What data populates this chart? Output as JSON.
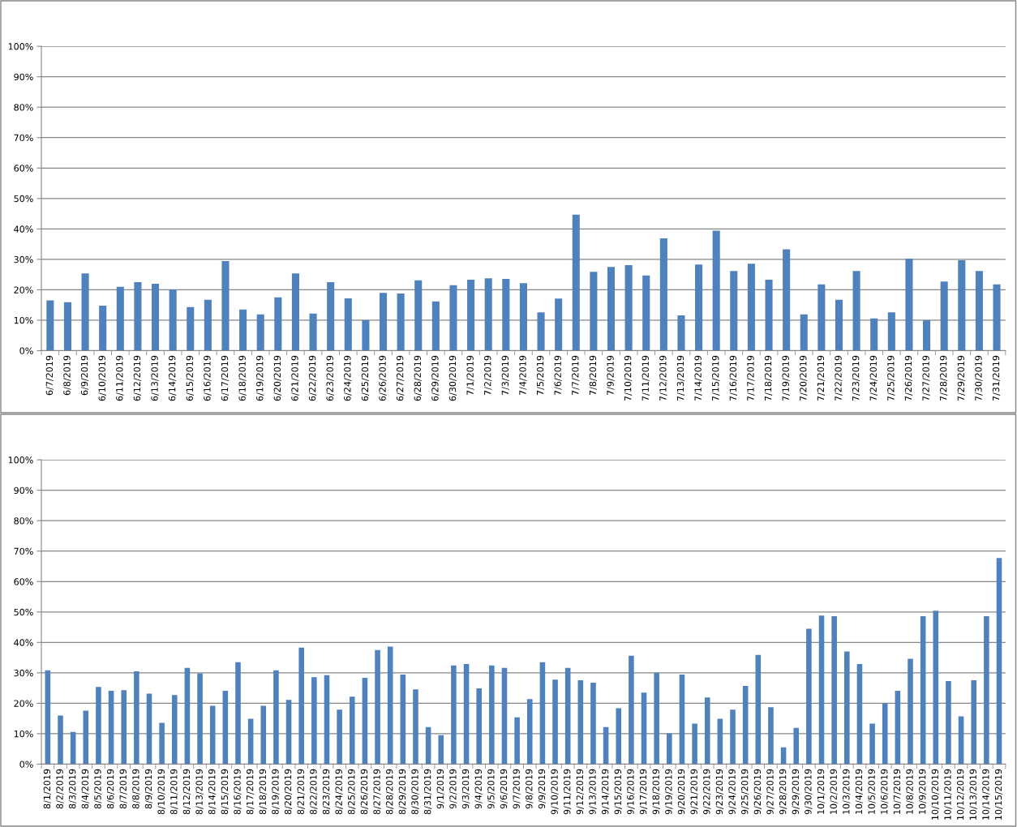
{
  "chart_data": [
    {
      "type": "bar",
      "color": "#4f81bd",
      "grid": "y",
      "ylim": [
        0,
        100
      ],
      "yticks": [
        {
          "value": 0,
          "label": "0%"
        },
        {
          "value": 10,
          "label": "10%"
        },
        {
          "value": 20,
          "label": "20%"
        },
        {
          "value": 30,
          "label": "30%"
        },
        {
          "value": 40,
          "label": "40%"
        },
        {
          "value": 50,
          "label": "50%"
        },
        {
          "value": 60,
          "label": "60%"
        },
        {
          "value": 70,
          "label": "70%"
        },
        {
          "value": 80,
          "label": "80%"
        },
        {
          "value": 90,
          "label": "90%"
        },
        {
          "value": 100,
          "label": "100%"
        }
      ],
      "categories": [
        "6/7/2019",
        "6/8/2019",
        "6/9/2019",
        "6/10/2019",
        "6/11/2019",
        "6/12/2019",
        "6/13/2019",
        "6/14/2019",
        "6/15/2019",
        "6/16/2019",
        "6/17/2019",
        "6/18/2019",
        "6/19/2019",
        "6/20/2019",
        "6/21/2019",
        "6/22/2019",
        "6/23/2019",
        "6/24/2019",
        "6/25/2019",
        "6/26/2019",
        "6/27/2019",
        "6/28/2019",
        "6/29/2019",
        "6/30/2019",
        "7/1/2019",
        "7/2/2019",
        "7/3/2019",
        "7/4/2019",
        "7/5/2019",
        "7/6/2019",
        "7/7/2019",
        "7/8/2019",
        "7/9/2019",
        "7/10/2019",
        "7/11/2019",
        "7/12/2019",
        "7/13/2019",
        "7/14/2019",
        "7/15/2019",
        "7/16/2019",
        "7/17/2019",
        "7/18/2019",
        "7/19/2019",
        "7/20/2019",
        "7/21/2019",
        "7/22/2019",
        "7/23/2019",
        "7/24/2019",
        "7/25/2019",
        "7/26/2019",
        "7/27/2019",
        "7/28/2019",
        "7/29/2019",
        "7/30/2019",
        "7/31/2019"
      ],
      "values": [
        16.5,
        15.9,
        25.4,
        14.8,
        21.0,
        22.5,
        22.0,
        20.1,
        14.3,
        16.7,
        29.4,
        13.5,
        11.9,
        17.5,
        25.4,
        12.2,
        22.5,
        17.2,
        10.0,
        19.0,
        18.8,
        23.1,
        16.2,
        21.5,
        23.3,
        23.8,
        23.6,
        22.2,
        12.6,
        17.1,
        44.7,
        25.9,
        27.5,
        28.1,
        24.7,
        36.9,
        11.6,
        28.3,
        39.4,
        26.2,
        28.6,
        23.3,
        33.3,
        11.9,
        21.8,
        16.7,
        26.2,
        10.6,
        12.6,
        30.2,
        10.0,
        22.7,
        29.7,
        26.2,
        21.8
      ]
    },
    {
      "type": "bar",
      "color": "#4f81bd",
      "grid": "y",
      "ylim": [
        0,
        100
      ],
      "yticks": [
        {
          "value": 0,
          "label": "0%"
        },
        {
          "value": 10,
          "label": "10%"
        },
        {
          "value": 20,
          "label": "20%"
        },
        {
          "value": 30,
          "label": "30%"
        },
        {
          "value": 40,
          "label": "40%"
        },
        {
          "value": 50,
          "label": "50%"
        },
        {
          "value": 60,
          "label": "60%"
        },
        {
          "value": 70,
          "label": "70%"
        },
        {
          "value": 80,
          "label": "80%"
        },
        {
          "value": 90,
          "label": "90%"
        },
        {
          "value": 100,
          "label": "100%"
        }
      ],
      "categories": [
        "8/1/2019",
        "8/2/2019",
        "8/3/2019",
        "8/4/2019",
        "8/5/2019",
        "8/6/2019",
        "8/7/2019",
        "8/8/2019",
        "8/9/2019",
        "8/10/2019",
        "8/11/2019",
        "8/12/2019",
        "8/13/2019",
        "8/14/2019",
        "8/15/2019",
        "8/16/2019",
        "8/17/2019",
        "8/18/2019",
        "8/19/2019",
        "8/20/2019",
        "8/21/2019",
        "8/22/2019",
        "8/23/2019",
        "8/24/2019",
        "8/25/2019",
        "8/26/2019",
        "8/27/2019",
        "8/28/2019",
        "8/29/2019",
        "8/30/2019",
        "8/31/2019",
        "9/1/2019",
        "9/2/2019",
        "9/3/2019",
        "9/4/2019",
        "9/5/2019",
        "9/6/2019",
        "9/7/2019",
        "9/8/2019",
        "9/9/2019",
        "9/10/2019",
        "9/11/2019",
        "9/12/2019",
        "9/13/2019",
        "9/14/2019",
        "9/15/2019",
        "9/16/2019",
        "9/17/2019",
        "9/18/2019",
        "9/19/2019",
        "9/20/2019",
        "9/21/2019",
        "9/22/2019",
        "9/23/2019",
        "9/24/2019",
        "9/25/2019",
        "9/26/2019",
        "9/27/2019",
        "9/28/2019",
        "9/29/2019",
        "9/30/2019",
        "10/1/2019",
        "10/2/2019",
        "10/3/2019",
        "10/4/2019",
        "10/5/2019",
        "10/6/2019",
        "10/7/2019",
        "10/8/2019",
        "10/9/2019",
        "10/10/2019",
        "10/11/2019",
        "10/12/2019",
        "10/13/2019",
        "10/14/2019",
        "10/15/2019"
      ],
      "values": [
        30.8,
        16.0,
        10.6,
        17.6,
        25.4,
        24.1,
        24.3,
        30.5,
        23.2,
        13.6,
        22.7,
        31.6,
        29.8,
        19.2,
        24.1,
        33.5,
        14.9,
        19.2,
        30.8,
        21.1,
        38.3,
        28.6,
        29.2,
        17.9,
        22.2,
        28.4,
        37.5,
        38.6,
        29.4,
        24.6,
        12.2,
        9.5,
        32.4,
        32.9,
        24.9,
        32.4,
        31.6,
        15.4,
        21.4,
        33.5,
        27.8,
        31.6,
        27.6,
        26.8,
        12.2,
        18.4,
        35.6,
        23.5,
        30.0,
        10.1,
        29.4,
        13.3,
        21.9,
        14.9,
        17.9,
        25.7,
        35.9,
        18.7,
        5.5,
        11.9,
        44.5,
        48.8,
        48.6,
        37.0,
        32.9,
        13.3,
        20.0,
        24.1,
        34.6,
        48.6,
        50.4,
        27.3,
        15.7,
        27.6,
        48.6,
        67.7
      ]
    }
  ]
}
